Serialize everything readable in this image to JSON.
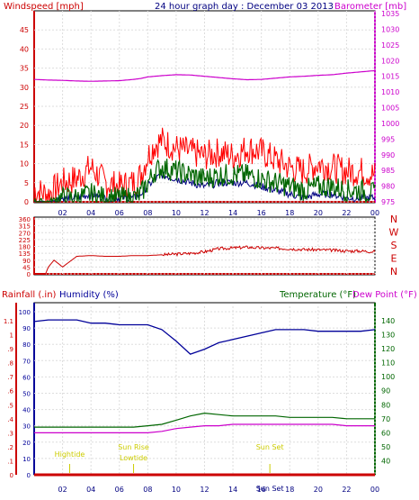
{
  "header": {
    "left": "Windspeed [mph]",
    "center": "24 hour graph day : December 03 2013",
    "right": "Barometer [mb]"
  },
  "colors": {
    "wind": "#ff0000",
    "gust": "#ff0000",
    "avg": "#000080",
    "baro": "#cc00cc",
    "dir": "#cc0000",
    "rain": "#cc0000",
    "humidity": "#000099",
    "temp": "#006600",
    "dew": "#cc00cc",
    "tide": "#cccc00"
  },
  "panel3_header": {
    "rainfall": "Rainfall (.in)",
    "humidity": "Humidity (%)",
    "temperature": "Temperature (°F)",
    "dewpoint": "Dew Point (°F)"
  },
  "compass": [
    "N",
    "W",
    "S",
    "E",
    "N"
  ],
  "chart_data": [
    {
      "type": "line",
      "title": "24 hour graph day : December 03 2013",
      "x_ticks": [
        "02",
        "04",
        "06",
        "08",
        "10",
        "12",
        "14",
        "16",
        "18",
        "20",
        "22",
        "00"
      ],
      "y_left_label": "Windspeed [mph]",
      "y_left_ticks": [
        0,
        5,
        10,
        15,
        20,
        25,
        30,
        35,
        40,
        45
      ],
      "y_right_label": "Barometer [mb]",
      "y_right_ticks": [
        975,
        980,
        985,
        990,
        995,
        1000,
        1005,
        1010,
        1015,
        1020,
        1025,
        1030,
        1035
      ],
      "x_hours": [
        0,
        1,
        2,
        3,
        4,
        5,
        6,
        7,
        7.5,
        8,
        8.5,
        9,
        10,
        11,
        12,
        13,
        14,
        15,
        16,
        17,
        18,
        19,
        20,
        21,
        22,
        23,
        24
      ],
      "series": [
        {
          "values": [
            3,
            2,
            5,
            6,
            9,
            5,
            4,
            5,
            7,
            12,
            15,
            16,
            14,
            13,
            12,
            13,
            12,
            14,
            13,
            11,
            9,
            8,
            10,
            9,
            8,
            8,
            7
          ]
        },
        {
          "values": [
            0,
            0,
            1,
            1,
            2,
            1,
            1,
            1,
            2,
            5,
            8,
            9,
            8,
            7,
            6,
            7,
            7,
            7,
            6,
            5,
            4,
            3,
            4,
            4,
            3,
            3,
            2
          ]
        },
        {
          "values": [
            0,
            0,
            1,
            1,
            2,
            1,
            1,
            1,
            2,
            4,
            6,
            7,
            6,
            5,
            4,
            5,
            5,
            5,
            4,
            3,
            2,
            1,
            2,
            2,
            1,
            1,
            1
          ]
        },
        {
          "values": [
            1014,
            1013.8,
            1013.7,
            1013.5,
            1013.4,
            1013.5,
            1013.6,
            1014,
            1014.3,
            1014.8,
            1015,
            1015.2,
            1015.5,
            1015.4,
            1015,
            1014.6,
            1014.2,
            1013.9,
            1014,
            1014.4,
            1014.8,
            1015,
            1015.3,
            1015.5,
            1016,
            1016.4,
            1016.8
          ]
        }
      ]
    },
    {
      "type": "line",
      "y_left_ticks": [
        0,
        45,
        90,
        135,
        180,
        225,
        270,
        315,
        360
      ],
      "x_hours": [
        0,
        0.8,
        1,
        1.4,
        2,
        3,
        4,
        5,
        6,
        7,
        8,
        9,
        10,
        11,
        12,
        13,
        14,
        15,
        16,
        17,
        18,
        19,
        20,
        21,
        22,
        23,
        24
      ],
      "values": [
        0,
        0,
        45,
        90,
        45,
        115,
        120,
        115,
        115,
        120,
        120,
        125,
        130,
        135,
        145,
        165,
        170,
        175,
        170,
        168,
        165,
        160,
        158,
        155,
        150,
        150,
        145
      ]
    },
    {
      "type": "line",
      "y_left_label": "Rainfall (.in)",
      "y_left_ticks": [
        0,
        0.1,
        0.2,
        0.3,
        0.4,
        0.5,
        0.6,
        0.7,
        0.8,
        0.9,
        1,
        1.1
      ],
      "y_humidity_label": "Humidity (%)",
      "y_humidity_ticks": [
        0,
        10,
        20,
        30,
        40,
        50,
        60,
        70,
        80,
        90,
        100
      ],
      "y_right_label": "Temperature (°F)",
      "y_right_ticks": [
        40,
        50,
        60,
        70,
        80,
        90,
        100,
        110,
        120,
        130,
        140
      ],
      "y_dew_label": "Dew Point (°F)",
      "x_hours": [
        0,
        1,
        2,
        3,
        4,
        5,
        6,
        7,
        8,
        9,
        10,
        11,
        12,
        13,
        14,
        15,
        16,
        17,
        18,
        19,
        20,
        21,
        22,
        23,
        24
      ],
      "series": [
        {
          "values": [
            94,
            95,
            95,
            95,
            93,
            93,
            92,
            92,
            92,
            89,
            82,
            74,
            77,
            81,
            83,
            85,
            87,
            89,
            89,
            89,
            88,
            88,
            88,
            88,
            89
          ]
        },
        {
          "values": [
            64,
            64,
            64,
            64,
            64,
            64,
            64,
            64,
            65,
            66,
            69,
            72,
            74,
            73,
            72,
            72,
            72,
            72,
            71,
            71,
            71,
            71,
            70,
            70,
            70
          ]
        },
        {
          "values": [
            60,
            60,
            60,
            60,
            60,
            60,
            60,
            60,
            60,
            61,
            63,
            64,
            65,
            65,
            66,
            66,
            66,
            66,
            66,
            66,
            66,
            66,
            65,
            65,
            65
          ]
        },
        {
          "values": [
            0,
            0,
            0,
            0,
            0,
            0,
            0,
            0,
            0,
            0,
            0,
            0,
            0,
            0,
            0,
            0,
            0,
            0,
            0,
            0,
            0,
            0,
            0,
            0,
            0
          ]
        }
      ],
      "annotations": [
        "Hightide",
        "Sun Rise",
        "Lowtide",
        "Sun Set",
        "Sun Set"
      ]
    }
  ]
}
